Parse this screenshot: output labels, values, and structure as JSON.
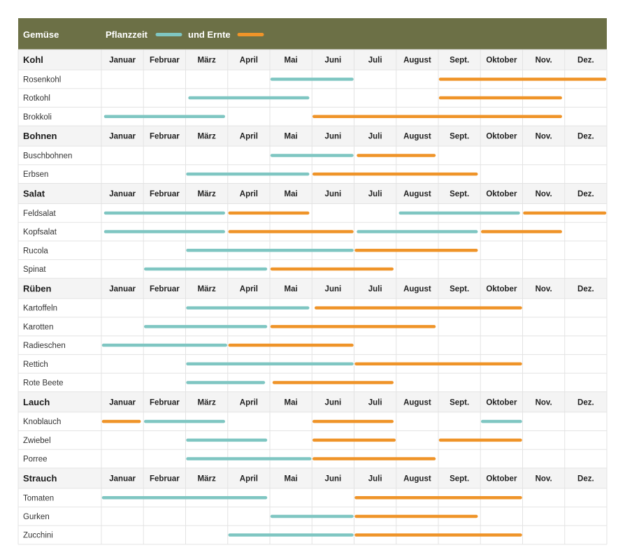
{
  "header": {
    "first_col": "Gemüse",
    "legend_planting": "Pflanzzeit",
    "legend_harvest": "und Ernte"
  },
  "colors": {
    "header_bg": "#6c7046",
    "planting": "#7fc6c2",
    "harvest": "#ef9429",
    "group_bg": "#f4f4f4",
    "grid": "#e3e3e3"
  },
  "chart_data": {
    "type": "gantt",
    "months": [
      "Januar",
      "Februar",
      "März",
      "April",
      "Mai",
      "Juni",
      "Juli",
      "August",
      "Sept.",
      "Oktober",
      "Nov.",
      "Dez."
    ],
    "groups": [
      {
        "name": "Kohl",
        "rows": [
          {
            "name": "Rosenkohl",
            "planting": [
              [
                5.05,
                6.95
              ]
            ],
            "harvest": [
              [
                9.05,
                12.95
              ]
            ]
          },
          {
            "name": "Rotkohl",
            "planting": [
              [
                3.1,
                5.9
              ]
            ],
            "harvest": [
              [
                9.05,
                11.9
              ]
            ]
          },
          {
            "name": "Brokkoli",
            "planting": [
              [
                1.1,
                3.9
              ]
            ],
            "harvest": [
              [
                6.05,
                11.9
              ]
            ]
          }
        ]
      },
      {
        "name": "Bohnen",
        "rows": [
          {
            "name": "Buschbohnen",
            "planting": [
              [
                5.05,
                6.95
              ]
            ],
            "harvest": [
              [
                7.1,
                8.9
              ]
            ]
          },
          {
            "name": "Erbsen",
            "planting": [
              [
                3.05,
                5.9
              ]
            ],
            "harvest": [
              [
                6.05,
                9.9
              ]
            ]
          }
        ]
      },
      {
        "name": "Salat",
        "rows": [
          {
            "name": "Feldsalat",
            "planting": [
              [
                1.1,
                3.9
              ],
              [
                8.1,
                10.9
              ]
            ],
            "harvest": [
              [
                4.05,
                5.9
              ],
              [
                11.05,
                12.95
              ]
            ]
          },
          {
            "name": "Kopfsalat",
            "planting": [
              [
                1.1,
                3.9
              ],
              [
                7.1,
                9.9
              ]
            ],
            "harvest": [
              [
                4.05,
                6.95
              ],
              [
                10.05,
                11.9
              ]
            ]
          },
          {
            "name": "Rucola",
            "planting": [
              [
                3.05,
                6.95
              ]
            ],
            "harvest": [
              [
                7.05,
                9.9
              ]
            ]
          },
          {
            "name": "Spinat",
            "planting": [
              [
                2.05,
                4.9
              ]
            ],
            "harvest": [
              [
                5.05,
                7.9
              ]
            ]
          }
        ]
      },
      {
        "name": "Rüben",
        "rows": [
          {
            "name": "Kartoffeln",
            "planting": [
              [
                3.05,
                5.9
              ]
            ],
            "harvest": [
              [
                6.1,
                10.95
              ]
            ]
          },
          {
            "name": "Karotten",
            "planting": [
              [
                2.05,
                4.9
              ]
            ],
            "harvest": [
              [
                5.05,
                8.9
              ]
            ]
          },
          {
            "name": "Radieschen",
            "planting": [
              [
                1.05,
                3.95
              ]
            ],
            "harvest": [
              [
                4.05,
                6.95
              ]
            ]
          },
          {
            "name": "Rettich",
            "planting": [
              [
                3.05,
                6.95
              ]
            ],
            "harvest": [
              [
                7.05,
                10.95
              ]
            ]
          },
          {
            "name": "Rote Beete",
            "planting": [
              [
                3.05,
                4.85
              ]
            ],
            "harvest": [
              [
                5.1,
                7.9
              ]
            ]
          }
        ]
      },
      {
        "name": "Lauch",
        "rows": [
          {
            "name": "Knoblauch",
            "planting": [
              [
                2.05,
                3.9
              ],
              [
                10.05,
                10.95
              ]
            ],
            "harvest": [
              [
                1.05,
                1.9
              ],
              [
                6.05,
                7.9
              ]
            ]
          },
          {
            "name": "Zwiebel",
            "planting": [
              [
                3.05,
                4.9
              ]
            ],
            "harvest": [
              [
                6.05,
                7.95
              ]
            ],
            "harvest_extra": [
              [
                9.05,
                10.95
              ]
            ]
          },
          {
            "name": "Porree",
            "planting": [
              [
                3.05,
                5.95
              ]
            ],
            "harvest": [
              [
                6.05,
                8.9
              ]
            ]
          }
        ]
      },
      {
        "name": "Strauch",
        "rows": [
          {
            "name": "Tomaten",
            "planting": [
              [
                1.05,
                4.9
              ]
            ],
            "harvest": [
              [
                7.05,
                10.95
              ]
            ]
          },
          {
            "name": "Gurken",
            "planting": [
              [
                5.05,
                6.95
              ]
            ],
            "harvest": [
              [
                7.05,
                9.9
              ]
            ]
          },
          {
            "name": "Zucchini",
            "planting": [
              [
                4.05,
                6.95
              ]
            ],
            "harvest": [
              [
                7.05,
                10.95
              ]
            ]
          }
        ]
      }
    ]
  }
}
